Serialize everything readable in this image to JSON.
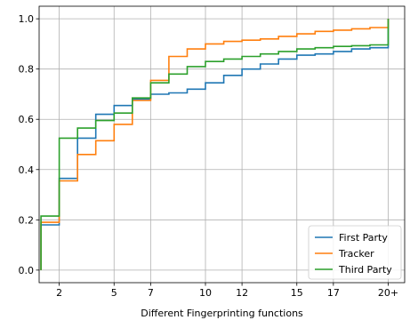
{
  "chart_data": {
    "type": "line",
    "step": true,
    "xlabel": "Different Fingerprinting functions",
    "ylabel": "",
    "title": "",
    "x_ticks": [
      {
        "value": 2,
        "label": "2"
      },
      {
        "value": 5,
        "label": "5"
      },
      {
        "value": 7,
        "label": "7"
      },
      {
        "value": 10,
        "label": "10"
      },
      {
        "value": 12,
        "label": "12"
      },
      {
        "value": 15,
        "label": "15"
      },
      {
        "value": 17,
        "label": "17"
      },
      {
        "value": 20,
        "label": "20+"
      }
    ],
    "y_ticks": [
      {
        "value": 0.0,
        "label": "0.0"
      },
      {
        "value": 0.2,
        "label": "0.2"
      },
      {
        "value": 0.4,
        "label": "0.4"
      },
      {
        "value": 0.6,
        "label": "0.6"
      },
      {
        "value": 0.8,
        "label": "0.8"
      },
      {
        "value": 1.0,
        "label": "1.0"
      }
    ],
    "xlim": [
      0.9,
      20.9
    ],
    "ylim": [
      -0.05,
      1.05
    ],
    "grid": true,
    "legend": "bottom-right",
    "series": [
      {
        "name": "First Party",
        "color": "#1f77b4",
        "x": [
          1,
          2,
          3,
          4,
          5,
          6,
          7,
          8,
          9,
          10,
          11,
          12,
          13,
          14,
          15,
          16,
          17,
          18,
          19,
          20
        ],
        "y": [
          0.18,
          0.365,
          0.525,
          0.62,
          0.655,
          0.68,
          0.7,
          0.705,
          0.72,
          0.745,
          0.775,
          0.8,
          0.82,
          0.84,
          0.855,
          0.86,
          0.87,
          0.88,
          0.885,
          0.89
        ]
      },
      {
        "name": "Tracker",
        "color": "#ff7f0e",
        "x": [
          1,
          2,
          3,
          4,
          5,
          6,
          7,
          8,
          9,
          10,
          11,
          12,
          13,
          14,
          15,
          16,
          17,
          18,
          19,
          20
        ],
        "y": [
          0.19,
          0.355,
          0.46,
          0.515,
          0.58,
          0.675,
          0.755,
          0.85,
          0.88,
          0.9,
          0.91,
          0.915,
          0.92,
          0.93,
          0.94,
          0.95,
          0.955,
          0.96,
          0.965,
          0.97
        ]
      },
      {
        "name": "Third Party",
        "color": "#2ca02c",
        "x": [
          1,
          2,
          3,
          4,
          5,
          6,
          7,
          8,
          9,
          10,
          11,
          12,
          13,
          14,
          15,
          16,
          17,
          18,
          19,
          20
        ],
        "y": [
          0.215,
          0.525,
          0.565,
          0.595,
          0.625,
          0.685,
          0.745,
          0.78,
          0.81,
          0.83,
          0.84,
          0.85,
          0.86,
          0.87,
          0.88,
          0.885,
          0.89,
          0.893,
          0.896,
          0.9
        ]
      }
    ]
  }
}
